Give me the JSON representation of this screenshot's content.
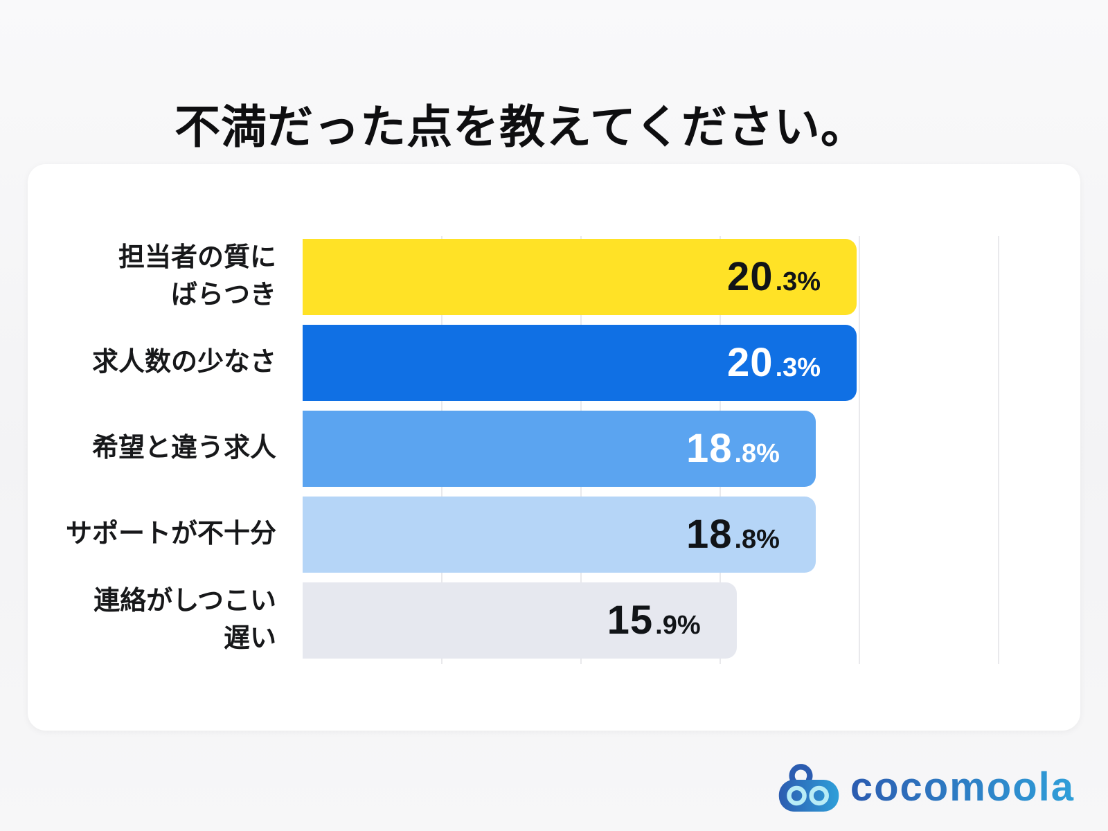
{
  "page": {
    "title": "不満だった点を教えてください。"
  },
  "chart_data": {
    "type": "bar",
    "orientation": "horizontal",
    "title": "不満だった点を教えてください。",
    "categories": [
      [
        "担当者の質に",
        "ばらつき"
      ],
      [
        "求人数の少なさ"
      ],
      [
        "希望と違う求人"
      ],
      [
        "サポートが不十分"
      ],
      [
        "連絡がしつこい",
        "遅い"
      ]
    ],
    "values": [
      20.3,
      20.3,
      18.8,
      18.8,
      15.9
    ],
    "value_labels": [
      "20.3%",
      "20.3%",
      "18.8%",
      "18.8%",
      "15.9%"
    ],
    "bar_colors": [
      "#ffe226",
      "#1070e4",
      "#5ba4f0",
      "#b5d5f7",
      "#e6e8ef"
    ],
    "value_text_colors": [
      "#111417",
      "#ffffff",
      "#ffffff",
      "#111417",
      "#111417"
    ],
    "xlabel": "",
    "ylabel": "",
    "xlim": [
      0,
      25.5
    ],
    "gridline_values": [
      5.1,
      10.2,
      15.3,
      20.4,
      25.5
    ],
    "grid": true,
    "legend": false,
    "plot_background": "#ffffff"
  },
  "logo": {
    "text": "cocomoola",
    "icon": "cocomoola-robot-icon",
    "gradient_start": "#2c5cb0",
    "gradient_end": "#2f9fd9",
    "eye_color": "#b8ecf6"
  },
  "colors": {
    "page_background": "#f5f5f6",
    "card_background": "#ffffff",
    "gridline": "#e9e9ec",
    "title_text": "#0e0e10",
    "label_text": "#17181a"
  }
}
